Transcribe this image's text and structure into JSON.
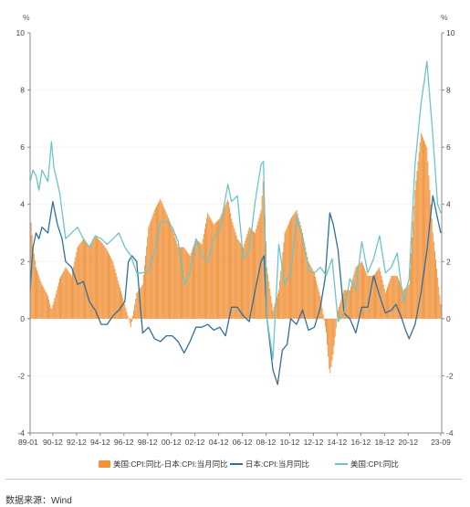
{
  "chart_data": {
    "type": "bar",
    "title": "",
    "y_unit_left": "%",
    "y_unit_right": "%",
    "ylim": [
      -4,
      10
    ],
    "yticks": [
      -4,
      -2,
      0,
      2,
      4,
      6,
      8,
      10
    ],
    "xlim": [
      1989.0,
      2023.75
    ],
    "xtick_labels": [
      "89-01",
      "90-12",
      "92-12",
      "94-12",
      "96-12",
      "98-12",
      "00-12",
      "02-12",
      "04-12",
      "06-12",
      "08-12",
      "10-12",
      "12-12",
      "14-12",
      "16-12",
      "18-12",
      "20-12",
      "23-09"
    ],
    "xtick_positions": [
      1989.0,
      1990.92,
      1992.92,
      1994.92,
      1996.92,
      1998.92,
      2000.92,
      2002.92,
      2004.92,
      2006.92,
      2008.92,
      2010.92,
      2012.92,
      2014.92,
      2016.92,
      2018.92,
      2020.92,
      2023.67
    ],
    "grid": true,
    "legend_position": "bottom",
    "series": [
      {
        "name": "美国:CPI:同比-日本:CPI:当月同比",
        "type": "bar",
        "color": "#f0923a",
        "x": [
          1989.0,
          1989.25,
          1989.5,
          1989.75,
          1990.0,
          1990.5,
          1990.8,
          1991.0,
          1991.5,
          1992.0,
          1992.5,
          1993.0,
          1993.5,
          1994.0,
          1994.5,
          1995.0,
          1995.5,
          1996.0,
          1996.5,
          1997.0,
          1997.5,
          1998.0,
          1998.5,
          1999.0,
          1999.5,
          2000.0,
          2000.5,
          2001.0,
          2001.5,
          2002.0,
          2002.5,
          2003.0,
          2003.5,
          2004.0,
          2004.5,
          2005.0,
          2005.7,
          2006.0,
          2006.5,
          2007.0,
          2007.5,
          2008.0,
          2008.5,
          2008.7,
          2009.0,
          2009.5,
          2010.0,
          2010.5,
          2011.0,
          2011.5,
          2012.0,
          2012.5,
          2013.0,
          2013.5,
          2014.0,
          2014.3,
          2014.6,
          2015.0,
          2015.5,
          2016.0,
          2016.5,
          2017.0,
          2017.5,
          2018.0,
          2018.5,
          2019.0,
          2019.5,
          2020.0,
          2020.5,
          2021.0,
          2021.5,
          2022.0,
          2022.5,
          2023.0,
          2023.4,
          2023.67
        ],
        "values": [
          3.8,
          2.5,
          1.8,
          1.5,
          1.2,
          0.8,
          0.3,
          0.6,
          1.4,
          1.8,
          1.5,
          2.5,
          2.8,
          2.5,
          2.9,
          2.7,
          2.4,
          2.0,
          1.2,
          0.5,
          -0.3,
          0.9,
          1.2,
          3.2,
          3.8,
          4.2,
          3.7,
          3.2,
          2.5,
          2.5,
          2.2,
          2.8,
          2.6,
          3.7,
          3.3,
          3.5,
          4.2,
          3.5,
          2.8,
          2.5,
          3.2,
          3.0,
          3.8,
          5.0,
          1.8,
          0.3,
          1.0,
          3.0,
          3.5,
          3.8,
          3.0,
          2.0,
          1.6,
          0.8,
          -0.5,
          -2.0,
          -1.2,
          0.3,
          1.0,
          1.0,
          1.8,
          2.0,
          1.5,
          1.5,
          1.8,
          0.9,
          1.5,
          1.5,
          1.0,
          1.2,
          4.5,
          6.5,
          6.0,
          3.0,
          1.5,
          0.5
        ]
      },
      {
        "name": "日本:CPI:当月同比",
        "type": "line",
        "color": "#2f6f9e",
        "x": [
          1989.0,
          1989.25,
          1989.5,
          1989.75,
          1990.0,
          1990.5,
          1990.92,
          1991.3,
          1991.7,
          1992.0,
          1992.5,
          1993.0,
          1993.5,
          1994.0,
          1994.5,
          1995.0,
          1995.5,
          1996.0,
          1996.5,
          1997.0,
          1997.3,
          1997.6,
          1998.0,
          1998.5,
          1999.0,
          1999.5,
          2000.0,
          2000.5,
          2001.0,
          2001.5,
          2002.0,
          2002.5,
          2003.0,
          2003.5,
          2004.0,
          2004.5,
          2005.0,
          2005.5,
          2006.0,
          2006.5,
          2007.0,
          2007.5,
          2008.0,
          2008.5,
          2008.75,
          2009.0,
          2009.5,
          2009.9,
          2010.3,
          2010.7,
          2011.0,
          2011.5,
          2012.0,
          2012.5,
          2013.0,
          2013.5,
          2013.9,
          2014.3,
          2014.6,
          2015.0,
          2015.5,
          2016.0,
          2016.5,
          2017.0,
          2017.5,
          2018.0,
          2018.5,
          2019.0,
          2019.5,
          2019.9,
          2020.3,
          2020.7,
          2021.0,
          2021.5,
          2022.0,
          2022.5,
          2023.0,
          2023.4,
          2023.67
        ],
        "values": [
          1.0,
          2.5,
          3.0,
          2.8,
          3.2,
          3.0,
          4.1,
          3.3,
          2.8,
          2.0,
          1.8,
          1.2,
          1.3,
          0.6,
          0.3,
          -0.2,
          -0.2,
          0.1,
          0.3,
          0.6,
          2.0,
          2.2,
          2.0,
          -0.5,
          -0.3,
          -0.7,
          -0.8,
          -0.6,
          -0.6,
          -0.8,
          -1.2,
          -0.8,
          -0.3,
          -0.3,
          -0.2,
          -0.4,
          -0.3,
          -0.6,
          0.4,
          0.4,
          0.1,
          -0.1,
          1.0,
          2.0,
          2.2,
          0.0,
          -1.8,
          -2.3,
          -1.1,
          -0.9,
          0.0,
          -0.2,
          0.3,
          -0.4,
          -0.3,
          0.4,
          1.4,
          3.7,
          3.3,
          2.4,
          0.2,
          0.0,
          -0.5,
          0.4,
          0.4,
          1.5,
          0.8,
          0.2,
          0.3,
          0.5,
          0.1,
          -0.4,
          -0.7,
          -0.2,
          0.9,
          2.4,
          4.3,
          3.5,
          3.0
        ]
      },
      {
        "name": "美国:CPI:同比",
        "type": "line",
        "color": "#6cc5c9",
        "x": [
          1989.0,
          1989.25,
          1989.5,
          1989.75,
          1990.0,
          1990.5,
          1990.8,
          1991.0,
          1991.5,
          1992.0,
          1992.5,
          1993.0,
          1993.5,
          1994.0,
          1994.5,
          1995.0,
          1995.5,
          1996.0,
          1996.5,
          1997.0,
          1997.5,
          1998.0,
          1998.5,
          1999.0,
          1999.5,
          2000.0,
          2000.5,
          2001.0,
          2001.5,
          2002.0,
          2002.5,
          2003.0,
          2003.5,
          2004.0,
          2004.5,
          2005.0,
          2005.7,
          2006.0,
          2006.5,
          2007.0,
          2007.5,
          2008.0,
          2008.5,
          2008.7,
          2009.0,
          2009.5,
          2010.0,
          2010.5,
          2011.0,
          2011.5,
          2012.0,
          2012.5,
          2013.0,
          2013.5,
          2014.0,
          2014.5,
          2015.0,
          2015.5,
          2016.0,
          2016.5,
          2017.0,
          2017.5,
          2018.0,
          2018.5,
          2019.0,
          2019.5,
          2020.0,
          2020.5,
          2021.0,
          2021.5,
          2022.0,
          2022.5,
          2023.0,
          2023.4,
          2023.67
        ],
        "values": [
          4.8,
          5.2,
          5.0,
          4.5,
          5.2,
          4.8,
          6.2,
          5.3,
          4.4,
          2.8,
          3.0,
          3.2,
          2.8,
          2.5,
          2.9,
          2.8,
          2.6,
          2.8,
          3.0,
          2.5,
          2.2,
          1.6,
          1.6,
          1.7,
          2.3,
          3.4,
          3.4,
          3.2,
          2.7,
          1.2,
          1.6,
          2.8,
          2.2,
          2.0,
          2.8,
          3.1,
          4.7,
          4.1,
          4.3,
          2.1,
          2.4,
          4.1,
          5.4,
          5.5,
          0.0,
          -1.4,
          2.6,
          1.2,
          1.6,
          3.6,
          2.9,
          1.7,
          1.6,
          1.8,
          1.5,
          2.1,
          -0.1,
          0.2,
          1.4,
          1.0,
          2.7,
          1.6,
          2.1,
          2.9,
          1.6,
          1.8,
          2.3,
          0.6,
          1.4,
          5.4,
          7.5,
          9.0,
          6.4,
          4.0,
          3.7
        ]
      }
    ]
  },
  "source_text": "数据来源：Wind"
}
